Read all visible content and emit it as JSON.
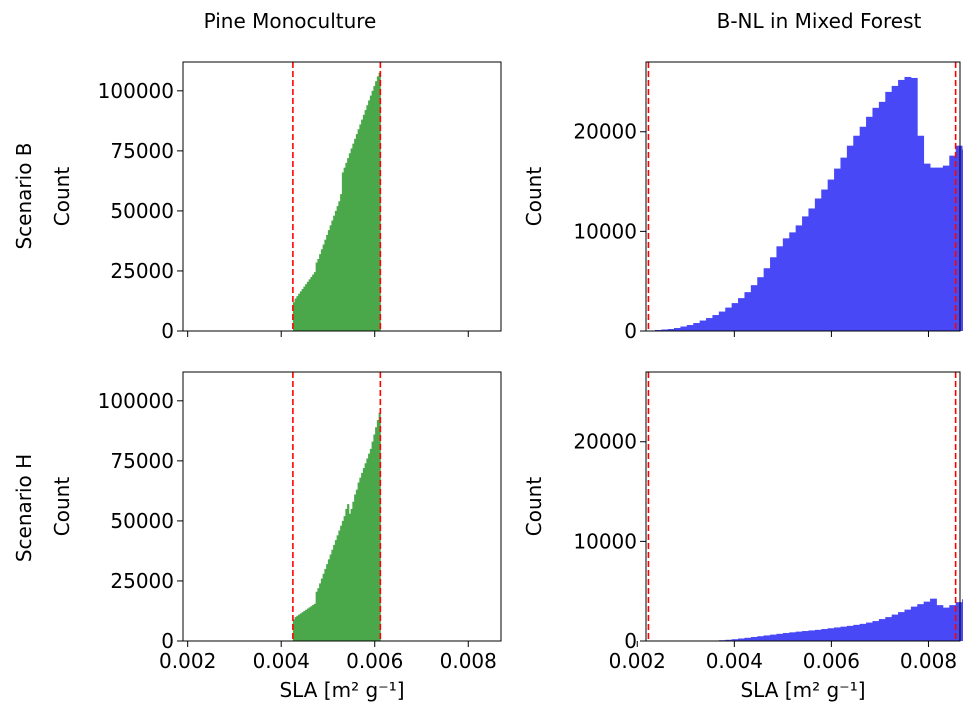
{
  "figure": {
    "col_titles": [
      "Pine Monoculture",
      "B-NL in Mixed Forest"
    ],
    "row_labels": [
      "Scenario B",
      "Scenario H"
    ],
    "ylabel": "Count",
    "xlabel": "SLA [m² g⁻¹]",
    "colors": {
      "pine": "#4aa84a",
      "bnl": "#4848f6",
      "vline": "#ff0000",
      "axes": "#000000"
    }
  },
  "chart_data": [
    {
      "type": "bar",
      "panel": "Pine Monoculture / Scenario B",
      "title": "Pine Monoculture",
      "row": "Scenario B",
      "xlabel": "",
      "ylabel": "Count",
      "xlim": [
        0.0019,
        0.0087
      ],
      "ylim": [
        0,
        112000
      ],
      "xticks": [
        0.002,
        0.004,
        0.006,
        0.008
      ],
      "xtick_labels": [],
      "yticks": [
        0,
        25000,
        50000,
        75000,
        100000
      ],
      "ytick_labels": [
        "0",
        "25000",
        "50000",
        "75000",
        "100000"
      ],
      "vlines": [
        0.00425,
        0.00612
      ],
      "color": "#4aa84a",
      "bins": {
        "start": 0.00425,
        "width": 3.74e-05,
        "values": [
          12000,
          13500,
          14500,
          15500,
          16500,
          17500,
          18500,
          19500,
          20500,
          21500,
          22500,
          23500,
          24500,
          28500,
          30000,
          32000,
          34000,
          36000,
          38000,
          40000,
          42000,
          44000,
          46000,
          48000,
          50000,
          52000,
          54000,
          57000,
          66000,
          68000,
          70000,
          72000,
          74000,
          76000,
          78000,
          80000,
          82000,
          84000,
          86000,
          88000,
          90000,
          92000,
          94000,
          96000,
          98000,
          100000,
          102000,
          104000,
          106000,
          107500
        ]
      }
    },
    {
      "type": "bar",
      "panel": "B-NL in Mixed Forest / Scenario B",
      "title": "B-NL in Mixed Forest",
      "row": "Scenario B",
      "xlabel": "",
      "ylabel": "Count",
      "xlim": [
        0.00218,
        0.00865
      ],
      "ylim": [
        0,
        27000
      ],
      "xticks": [
        0.004,
        0.006,
        0.008
      ],
      "xtick_labels": [],
      "yticks": [
        0,
        10000,
        20000
      ],
      "ytick_labels": [
        "0",
        "10000",
        "20000"
      ],
      "vlines": [
        0.00223,
        0.00856
      ],
      "color": "#4848f6",
      "bins": {
        "start": 0.00223,
        "width": 0.0001319,
        "values": [
          0,
          100,
          150,
          200,
          300,
          450,
          600,
          800,
          1050,
          1300,
          1600,
          1950,
          2350,
          2800,
          3300,
          3900,
          4600,
          5400,
          6300,
          7400,
          8500,
          9300,
          9900,
          10600,
          11500,
          12300,
          13300,
          14200,
          15200,
          16300,
          17400,
          18600,
          19600,
          20500,
          21500,
          22400,
          23000,
          24000,
          24600,
          25200,
          25500,
          25400,
          19600,
          16800,
          16400,
          16400,
          16600,
          17600,
          18600,
          18200
        ]
      }
    },
    {
      "type": "bar",
      "panel": "Pine Monoculture / Scenario H",
      "title": "",
      "row": "Scenario H",
      "xlabel": "SLA [m² g⁻¹]",
      "ylabel": "Count",
      "xlim": [
        0.0019,
        0.0087
      ],
      "ylim": [
        0,
        112000
      ],
      "xticks": [
        0.002,
        0.004,
        0.006,
        0.008
      ],
      "xtick_labels": [
        "0.002",
        "0.004",
        "0.006",
        "0.008"
      ],
      "yticks": [
        0,
        25000,
        50000,
        75000,
        100000
      ],
      "ytick_labels": [
        "0",
        "25000",
        "50000",
        "75000",
        "100000"
      ],
      "vlines": [
        0.00425,
        0.00612
      ],
      "color": "#4aa84a",
      "bins": {
        "start": 0.00425,
        "width": 3.74e-05,
        "values": [
          9000,
          10000,
          10500,
          11000,
          11500,
          12000,
          12500,
          13000,
          13500,
          14000,
          14500,
          15000,
          15500,
          20500,
          22000,
          24000,
          26000,
          28000,
          30000,
          32000,
          34000,
          36000,
          38000,
          40000,
          42000,
          44000,
          46000,
          48000,
          50000,
          52000,
          55000,
          57000,
          53000,
          55000,
          58000,
          61000,
          63000,
          66000,
          68000,
          70000,
          72000,
          74000,
          76000,
          78000,
          80000,
          83000,
          86000,
          89000,
          92000,
          95000
        ]
      }
    },
    {
      "type": "bar",
      "panel": "B-NL in Mixed Forest / Scenario H",
      "title": "",
      "row": "Scenario H",
      "xlabel": "SLA [m² g⁻¹]",
      "ylabel": "Count",
      "xlim": [
        0.00218,
        0.00865
      ],
      "ylim": [
        0,
        27000
      ],
      "xticks": [
        0.002,
        0.004,
        0.006,
        0.008
      ],
      "xtick_labels": [
        "0.002",
        "0.004",
        "0.006",
        "0.008"
      ],
      "yticks": [
        0,
        10000,
        20000
      ],
      "ytick_labels": [
        "0",
        "10000",
        "20000"
      ],
      "vlines": [
        0.00223,
        0.00856
      ],
      "color": "#4848f6",
      "bins": {
        "start": 0.00223,
        "width": 0.0001319,
        "values": [
          0,
          0,
          0,
          0,
          0,
          0,
          0,
          0,
          0,
          0,
          50,
          80,
          120,
          180,
          250,
          320,
          400,
          480,
          560,
          640,
          720,
          800,
          870,
          940,
          1000,
          1060,
          1120,
          1200,
          1280,
          1360,
          1440,
          1520,
          1620,
          1720,
          1850,
          2000,
          2200,
          2400,
          2650,
          2900,
          3150,
          3450,
          3700,
          3950,
          4250,
          3600,
          3350,
          3600,
          3900,
          4200,
          4550,
          4900
        ]
      }
    }
  ]
}
